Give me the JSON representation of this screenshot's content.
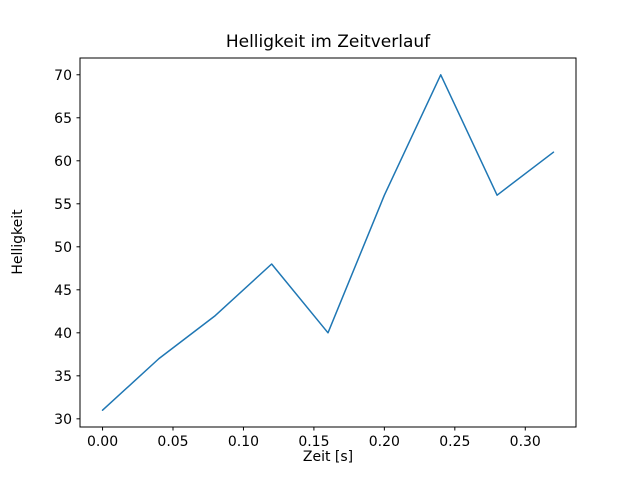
{
  "figure": {
    "background": "#ffffff",
    "spine_color": "#000000",
    "text_color": "#000000"
  },
  "chart_data": {
    "type": "line",
    "title": "Helligkeit im Zeitverlauf",
    "xlabel": "Zeit [s]",
    "ylabel": "Helligkeit",
    "x": [
      0.0,
      0.04,
      0.08,
      0.12,
      0.16,
      0.2,
      0.24,
      0.28,
      0.32
    ],
    "y": [
      31,
      37,
      42,
      48,
      40,
      56,
      70,
      56,
      61
    ],
    "series_name": "Helligkeit",
    "xlim": [
      -0.016,
      0.336
    ],
    "ylim": [
      29.05,
      71.95
    ],
    "x_ticks": [
      0.0,
      0.05,
      0.1,
      0.15,
      0.2,
      0.25,
      0.3
    ],
    "x_tick_labels": [
      "0.00",
      "0.05",
      "0.10",
      "0.15",
      "0.20",
      "0.25",
      "0.30"
    ],
    "y_ticks": [
      30,
      35,
      40,
      45,
      50,
      55,
      60,
      65,
      70
    ],
    "y_tick_labels": [
      "30",
      "35",
      "40",
      "45",
      "50",
      "55",
      "60",
      "65",
      "70"
    ],
    "line_color": "#1f77b4",
    "line_width": 1.5,
    "grid": false,
    "legend": null,
    "markers": false
  }
}
